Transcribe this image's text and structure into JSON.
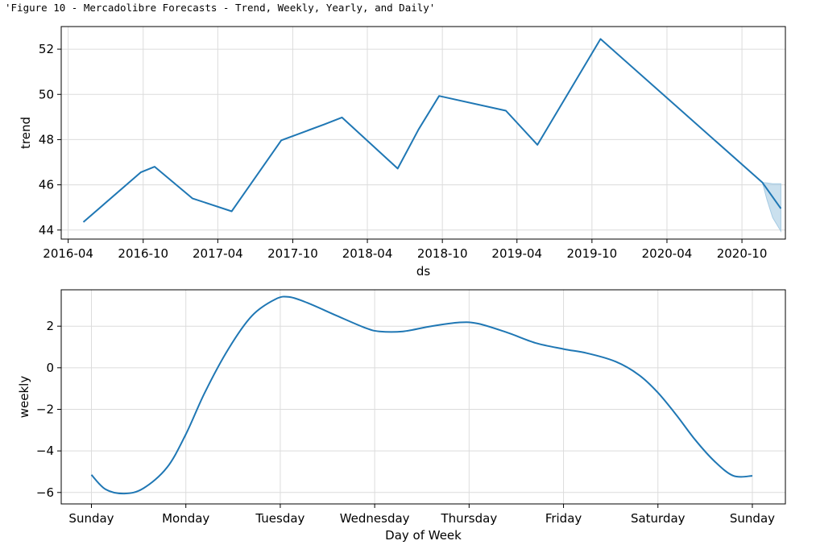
{
  "output_text": "'Figure 10 - Mercadolibre Forecasts - Trend, Weekly, Yearly, and Daily'",
  "colors": {
    "line": "#1f77b4",
    "band": "#a6cbe3",
    "grid": "#dcdcdc"
  },
  "chart_data": [
    {
      "type": "line",
      "title": "",
      "xlabel": "ds",
      "ylabel": "trend",
      "x_axis_type": "date",
      "xlim": [
        "2016-03-15",
        "2021-01-15"
      ],
      "ylim": [
        43.6,
        53.0
      ],
      "x_ticks": [
        "2016-04",
        "2016-10",
        "2017-04",
        "2017-10",
        "2018-04",
        "2018-10",
        "2019-04",
        "2019-10",
        "2020-04",
        "2020-10"
      ],
      "y_ticks": [
        44,
        46,
        48,
        50,
        52
      ],
      "y_tick_labels": [
        "44",
        "46",
        "48",
        "50",
        "52"
      ],
      "grid": true,
      "series": [
        {
          "x": [
            "2016-05-08",
            "2016-09-25",
            "2016-10-29",
            "2017-01-29",
            "2017-05-05",
            "2017-09-03",
            "2017-12-18",
            "2018-01-29",
            "2018-06-14",
            "2018-08-04",
            "2018-09-23",
            "2019-03-05",
            "2019-05-21",
            "2019-10-22",
            "2020-11-20",
            "2021-01-04"
          ],
          "y": [
            44.35,
            46.55,
            46.8,
            45.4,
            44.83,
            47.97,
            48.68,
            48.98,
            46.72,
            48.45,
            49.93,
            49.28,
            47.77,
            52.45,
            46.1,
            44.95
          ]
        }
      ],
      "uncertainty": {
        "x": [
          "2020-11-20",
          "2020-12-01",
          "2020-12-15",
          "2021-01-04"
        ],
        "lower": [
          46.1,
          45.35,
          44.55,
          43.95
        ],
        "upper": [
          46.1,
          46.08,
          46.05,
          46.05
        ]
      }
    },
    {
      "type": "line",
      "title": "",
      "xlabel": "Day of Week",
      "ylabel": "weekly",
      "categories": [
        "Sunday",
        "Monday",
        "Tuesday",
        "Wednesday",
        "Thursday",
        "Friday",
        "Saturday",
        "Sunday"
      ],
      "xlim": [
        -0.32,
        7.35
      ],
      "ylim": [
        -6.55,
        3.75
      ],
      "y_ticks": [
        -6,
        -4,
        -2,
        0,
        2
      ],
      "y_tick_labels": [
        "−6",
        "−4",
        "−2",
        "0",
        "2"
      ],
      "grid": true,
      "series": [
        {
          "x": [
            0,
            0.15,
            0.35,
            0.55,
            0.8,
            1.0,
            1.2,
            1.45,
            1.7,
            1.95,
            2.1,
            2.3,
            2.6,
            2.9,
            3.05,
            3.3,
            3.6,
            3.9,
            4.1,
            4.4,
            4.7,
            5.0,
            5.25,
            5.55,
            5.8,
            6.0,
            6.2,
            6.4,
            6.6,
            6.8,
            7.0
          ],
          "y": [
            -5.15,
            -5.85,
            -6.05,
            -5.8,
            -4.8,
            -3.2,
            -1.2,
            0.9,
            2.5,
            3.3,
            3.4,
            3.1,
            2.5,
            1.92,
            1.75,
            1.75,
            2.0,
            2.18,
            2.12,
            1.7,
            1.2,
            0.9,
            0.7,
            0.3,
            -0.35,
            -1.2,
            -2.3,
            -3.5,
            -4.5,
            -5.2,
            -5.2
          ]
        }
      ]
    }
  ]
}
